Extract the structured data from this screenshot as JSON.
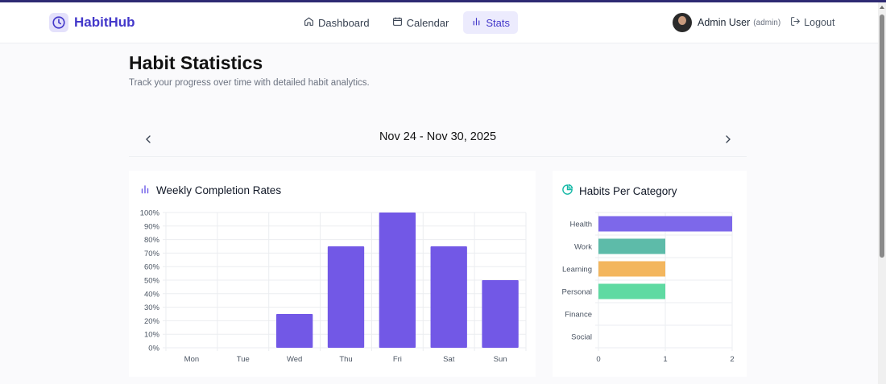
{
  "brand": {
    "name": "HabitHub",
    "icon": "clock-icon"
  },
  "nav": {
    "links": [
      {
        "label": "Dashboard",
        "icon": "home-icon"
      },
      {
        "label": "Calendar",
        "icon": "calendar-icon"
      },
      {
        "label": "Stats",
        "icon": "bar-chart-icon",
        "active": true
      }
    ]
  },
  "user": {
    "name": "Admin User",
    "role": "(admin)",
    "logout_label": "Logout"
  },
  "page": {
    "title": "Habit Statistics",
    "subtitle": "Track your progress over time with detailed habit analytics."
  },
  "week": {
    "label": "Nov 24 - Nov 30, 2025"
  },
  "weekly_card": {
    "title": "Weekly Completion Rates"
  },
  "category_card": {
    "title": "Habits Per Category"
  },
  "colors": {
    "accent": "#4338ca",
    "bar": "#7258e6",
    "health": "#7d68ea",
    "work": "#5dbba9",
    "learning": "#f3b65e",
    "personal": "#5fdaa2",
    "pie_icon": "#14b8a6"
  },
  "chart_data": [
    {
      "type": "bar",
      "title": "Weekly Completion Rates",
      "categories": [
        "Mon",
        "Tue",
        "Wed",
        "Thu",
        "Fri",
        "Sat",
        "Sun"
      ],
      "values": [
        0,
        0,
        25,
        75,
        100,
        75,
        50
      ],
      "yticks": [
        "0%",
        "10%",
        "20%",
        "30%",
        "40%",
        "50%",
        "60%",
        "70%",
        "80%",
        "90%",
        "100%"
      ],
      "ylim": [
        0,
        100
      ],
      "grid": true
    },
    {
      "type": "bar",
      "orientation": "horizontal",
      "title": "Habits Per Category",
      "categories": [
        "Health",
        "Work",
        "Learning",
        "Personal",
        "Finance",
        "Social"
      ],
      "values": [
        2,
        1,
        1,
        1,
        0,
        0
      ],
      "xticks": [
        "0",
        "1",
        "2"
      ],
      "xlim": [
        0,
        2
      ],
      "grid": true
    }
  ]
}
